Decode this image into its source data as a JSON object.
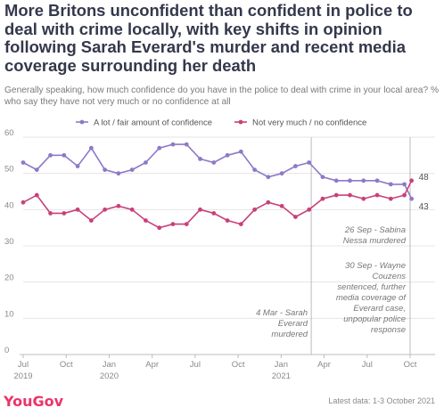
{
  "title": "More Britons unconfident than confident in police to deal with crime locally, with key shifts in opinion following Sarah Everard's murder and recent media coverage surrounding her death",
  "subtitle": "Generally speaking, how much confidence do you have in the police to deal with crime in your local area? % who say they have not very much or no confidence at all",
  "logo": "YouGov",
  "footer": "Latest data: 1-3 October 2021",
  "colors": {
    "purple": "#8d79c7",
    "pink": "#c9407a",
    "grid": "#e4e4e4",
    "text": "#34384b"
  },
  "chart_data": {
    "type": "line",
    "ylim": [
      0,
      60
    ],
    "yticks": [
      0,
      10,
      20,
      30,
      40,
      50,
      60
    ],
    "x_months_range": [
      0,
      27
    ],
    "x_ticks": [
      {
        "label": "Jul",
        "sub": "2019",
        "m": 0
      },
      {
        "label": "Oct",
        "sub": "",
        "m": 3
      },
      {
        "label": "Jan",
        "sub": "2020",
        "m": 6
      },
      {
        "label": "Apr",
        "sub": "",
        "m": 9
      },
      {
        "label": "Jul",
        "sub": "",
        "m": 12
      },
      {
        "label": "Oct",
        "sub": "",
        "m": 15
      },
      {
        "label": "Jan",
        "sub": "2021",
        "m": 18
      },
      {
        "label": "Apr",
        "sub": "",
        "m": 21
      },
      {
        "label": "Jul",
        "sub": "",
        "m": 24
      },
      {
        "label": "Oct",
        "sub": "",
        "m": 27
      }
    ],
    "x": [
      0,
      0.95,
      1.9,
      2.85,
      3.8,
      4.75,
      5.7,
      6.65,
      7.6,
      8.55,
      9.5,
      10.45,
      11.4,
      12.35,
      13.3,
      14.25,
      15.2,
      16.15,
      17.1,
      18.05,
      19,
      19.95,
      20.9,
      21.85,
      22.8,
      23.75,
      24.7,
      25.65,
      26.6,
      27.1
    ],
    "series": [
      {
        "name": "A lot / fair amount of confidence",
        "color": "#8d79c7",
        "end_label": "43",
        "values": [
          53,
          51,
          55,
          55,
          52,
          57,
          51,
          50,
          51,
          53,
          57,
          58,
          58,
          54,
          53,
          55,
          56,
          51,
          49,
          50,
          52,
          53,
          49,
          48,
          48,
          48,
          48,
          47,
          47,
          43
        ]
      },
      {
        "name": "Not very much / no confidence",
        "color": "#c9407a",
        "end_label": "48",
        "values": [
          42,
          44,
          39,
          39,
          40,
          37,
          40,
          41,
          40,
          37,
          35,
          36,
          36,
          40,
          39,
          37,
          36,
          40,
          42,
          41,
          38,
          40,
          43,
          44,
          44,
          43,
          44,
          43,
          44,
          48
        ]
      }
    ],
    "legend": "top",
    "annotations": [
      {
        "m": 20.1,
        "lines": [
          "4 Mar - Sarah",
          "Everard",
          "murdered"
        ]
      },
      {
        "m": 26.9,
        "lines": [
          "26 Sep - Sabina",
          "Nessa murdered"
        ]
      },
      {
        "m": 27.0,
        "lines": [
          "30 Sep - Wayne",
          "Couzens",
          "sentenced, further",
          "media coverage of",
          "Everard case,",
          "unpopular police",
          "response"
        ]
      }
    ]
  }
}
